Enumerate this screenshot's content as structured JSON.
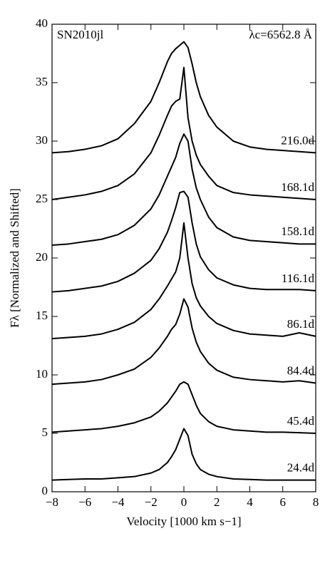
{
  "chart_data": {
    "type": "line",
    "xlabel": "Velocity [1000 km s−1]",
    "ylabel": "Fλ [Normalized and Shifted]",
    "annotations": [
      "SN2010jl",
      "λc=6562.8 Å"
    ],
    "x": [
      -8,
      -7,
      -6,
      -5,
      -4,
      -3,
      -2,
      -1.5,
      -1,
      -0.75,
      -0.5,
      -0.25,
      0,
      0.25,
      0.5,
      0.75,
      1,
      1.5,
      2,
      3,
      4,
      5,
      6,
      7,
      8
    ],
    "series": [
      {
        "name": "24.4d",
        "color": "#000000",
        "values": [
          1.0,
          1.05,
          1.1,
          1.1,
          1.2,
          1.3,
          1.6,
          1.9,
          2.5,
          3.0,
          3.6,
          4.5,
          5.4,
          4.8,
          3.2,
          2.4,
          1.9,
          1.5,
          1.3,
          1.1,
          1.05,
          1.0,
          1.0,
          1.0,
          1.0
        ]
      },
      {
        "name": "45.4d",
        "color": "#000000",
        "values": [
          5.1,
          5.2,
          5.3,
          5.4,
          5.6,
          5.9,
          6.4,
          6.9,
          7.6,
          8.1,
          8.6,
          9.2,
          9.4,
          9.2,
          8.3,
          7.4,
          6.7,
          6.0,
          5.6,
          5.3,
          5.2,
          5.1,
          5.1,
          5.05,
          5.0
        ]
      },
      {
        "name": "84.4d",
        "color": "#000000",
        "values": [
          9.2,
          9.3,
          9.4,
          9.6,
          10.0,
          10.5,
          11.5,
          12.3,
          13.3,
          13.9,
          14.3,
          15.2,
          16.5,
          15.8,
          14.0,
          12.8,
          12.0,
          11.0,
          10.4,
          9.8,
          9.6,
          9.5,
          9.4,
          9.5,
          9.3
        ]
      },
      {
        "name": "86.1d",
        "color": "#000000",
        "values": [
          13.1,
          13.2,
          13.3,
          13.5,
          13.9,
          14.5,
          15.6,
          16.5,
          17.6,
          18.2,
          18.8,
          20.0,
          23.0,
          20.0,
          17.8,
          16.6,
          15.9,
          15.0,
          14.4,
          13.8,
          13.5,
          13.4,
          13.3,
          13.6,
          13.3
        ]
      },
      {
        "name": "116.1d",
        "color": "#000000",
        "values": [
          17.1,
          17.2,
          17.4,
          17.6,
          18.0,
          18.7,
          19.8,
          20.8,
          22.2,
          23.2,
          24.3,
          25.6,
          25.7,
          25.2,
          23.0,
          21.2,
          20.1,
          19.0,
          18.3,
          17.7,
          17.4,
          17.3,
          17.3,
          17.3,
          17.2
        ]
      },
      {
        "name": "158.1d",
        "color": "#000000",
        "values": [
          21.1,
          21.2,
          21.4,
          21.6,
          22.0,
          22.8,
          24.2,
          25.4,
          27.0,
          27.8,
          28.6,
          29.8,
          30.6,
          30.0,
          27.6,
          26.0,
          25.0,
          23.5,
          22.6,
          21.8,
          21.5,
          21.4,
          21.3,
          21.2,
          21.2
        ]
      },
      {
        "name": "168.1d",
        "color": "#000000",
        "values": [
          25.0,
          25.2,
          25.4,
          25.7,
          26.2,
          27.2,
          29.0,
          30.5,
          32.2,
          33.0,
          33.4,
          33.6,
          36.3,
          32.0,
          30.0,
          28.8,
          28.0,
          27.0,
          26.2,
          25.6,
          25.4,
          25.3,
          25.2,
          25.1,
          25.0
        ]
      },
      {
        "name": "216.0d",
        "color": "#000000",
        "values": [
          29.0,
          29.1,
          29.3,
          29.6,
          30.2,
          31.5,
          33.4,
          35.0,
          36.8,
          37.5,
          37.9,
          38.2,
          38.5,
          38.0,
          36.6,
          35.0,
          33.8,
          32.2,
          31.2,
          30.0,
          29.5,
          29.3,
          29.2,
          29.1,
          29.0
        ]
      }
    ],
    "xlim": [
      -8,
      8
    ],
    "ylim": [
      0,
      40
    ],
    "xticks": [
      {
        "value": -8,
        "label": "−8"
      },
      {
        "value": -6,
        "label": "−6"
      },
      {
        "value": -4,
        "label": "−4"
      },
      {
        "value": -2,
        "label": "−2"
      },
      0,
      2,
      4,
      6,
      8
    ],
    "yticks": [
      0,
      5,
      10,
      15,
      20,
      25,
      30,
      35,
      40
    ],
    "grid": false
  }
}
